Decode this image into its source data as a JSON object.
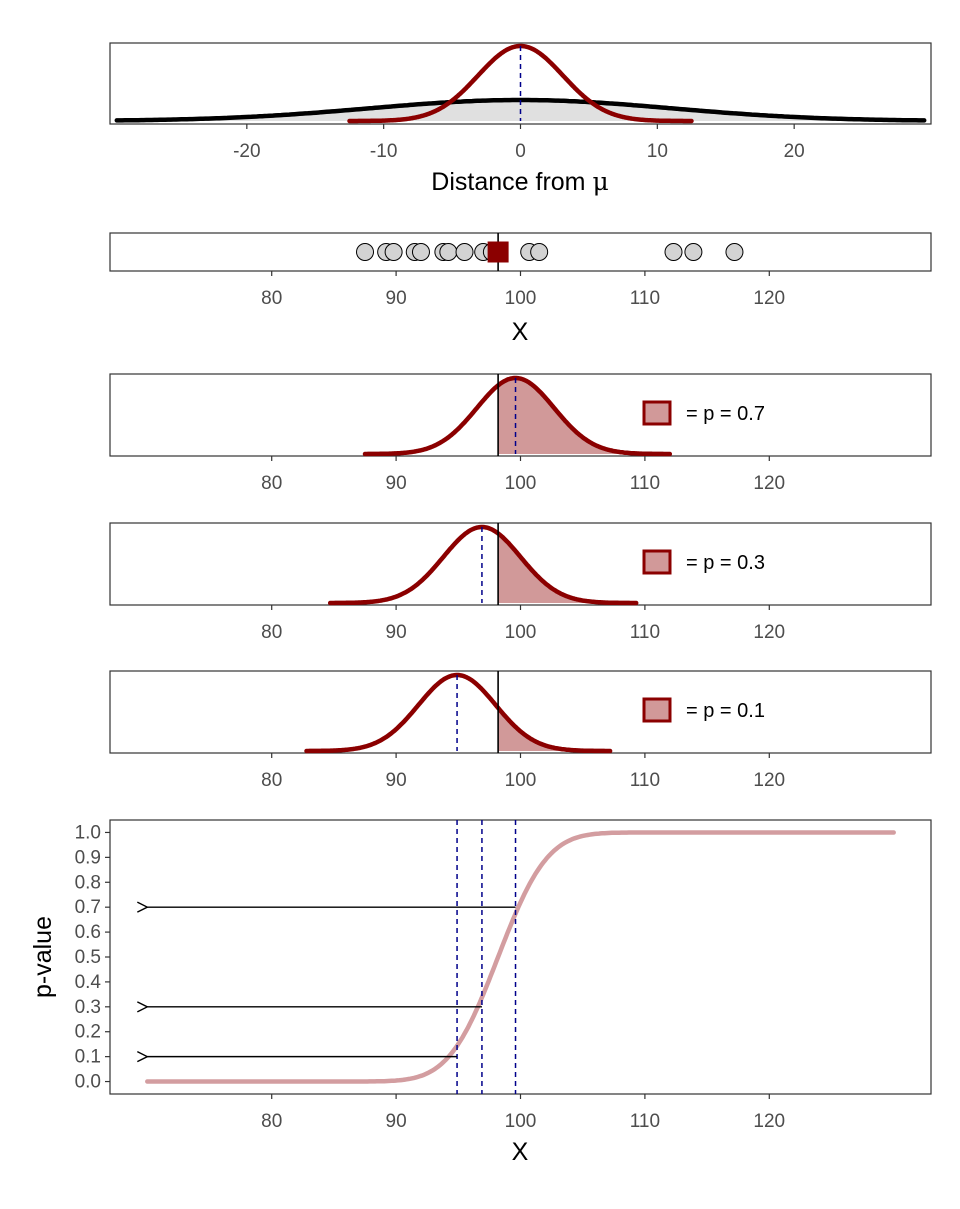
{
  "colors": {
    "curve": "#8b0000",
    "fill": "#d19999",
    "sampling_curve": "#000000",
    "guide": "#00008b",
    "pcurve": "#d39da0",
    "point_fill": "#d3d3d3",
    "frame": "#333333",
    "tick_text": "#4d4d4d"
  },
  "chart_data": [
    {
      "type": "area",
      "panel": "distance",
      "xlabel_prefix": "Distance from ",
      "xlabel_symbol": "μ",
      "ylabel": "",
      "xlim": [
        -30,
        30
      ],
      "ticks": [
        -20,
        -10,
        0,
        10,
        20
      ],
      "tick_labels": [
        "-20",
        "-10",
        "0",
        "10",
        "20"
      ],
      "series": [
        {
          "kind": "normal",
          "mean": 0,
          "sd": 3.1,
          "range": [
            -12.5,
            12.5
          ],
          "role": "red"
        },
        {
          "kind": "normal",
          "mean": 0,
          "sd": 11,
          "range": [
            -29.5,
            29.5
          ],
          "role": "black"
        }
      ],
      "mean_line": 0
    },
    {
      "type": "scatter",
      "panel": "sample",
      "xlabel": "X",
      "xlim": [
        67,
        133
      ],
      "ticks": [
        80,
        90,
        100,
        110,
        120
      ],
      "tick_labels": [
        "80",
        "90",
        "100",
        "110",
        "120"
      ],
      "x": [
        87.5,
        89.2,
        89.8,
        91.5,
        92.0,
        93.8,
        94.2,
        95.5,
        97.0,
        97.7,
        98.2,
        100.7,
        101.5,
        112.3,
        113.9,
        117.2
      ],
      "sample_mean": 98.2
    },
    {
      "type": "area",
      "panel": "p07",
      "mean": 99.6,
      "sd": 3.1,
      "range": [
        87.5,
        112.0
      ],
      "observed_mean": 98.2,
      "shade": "right",
      "legend": "= p = 0.7",
      "ticks": [
        80,
        90,
        100,
        110,
        120
      ],
      "tick_labels": [
        "80",
        "90",
        "100",
        "110",
        "120"
      ],
      "xlim": [
        67,
        133
      ]
    },
    {
      "type": "area",
      "panel": "p03",
      "mean": 96.9,
      "sd": 3.1,
      "range": [
        84.7,
        109.3
      ],
      "observed_mean": 98.2,
      "shade": "right",
      "legend": "= p = 0.3",
      "ticks": [
        80,
        90,
        100,
        110,
        120
      ],
      "tick_labels": [
        "80",
        "90",
        "100",
        "110",
        "120"
      ],
      "xlim": [
        67,
        133
      ]
    },
    {
      "type": "area",
      "panel": "p01",
      "mean": 94.9,
      "sd": 3.1,
      "range": [
        82.8,
        107.2
      ],
      "observed_mean": 98.2,
      "shade": "right",
      "legend": "= p = 0.1",
      "ticks": [
        80,
        90,
        100,
        110,
        120
      ],
      "tick_labels": [
        "80",
        "90",
        "100",
        "110",
        "120"
      ],
      "xlim": [
        67,
        133
      ]
    },
    {
      "type": "line",
      "panel": "pvalue",
      "xlabel": "X",
      "ylabel": "p-value",
      "xlim": [
        67,
        133
      ],
      "ylim": [
        -0.05,
        1.05
      ],
      "x_ticks": [
        80,
        90,
        100,
        110,
        120
      ],
      "x_tick_labels": [
        "80",
        "90",
        "100",
        "110",
        "120"
      ],
      "y_ticks": [
        0.0,
        0.1,
        0.2,
        0.3,
        0.4,
        0.5,
        0.6,
        0.7,
        0.8,
        0.9,
        1.0
      ],
      "y_tick_labels": [
        "0.0",
        "0.1",
        "0.2",
        "0.3",
        "0.4",
        "0.5",
        "0.6",
        "0.7",
        "0.8",
        "0.9",
        "1.0"
      ],
      "curve": {
        "kind": "normal_cdf",
        "mean": 98.2,
        "sd": 3.1,
        "range": [
          70,
          130
        ]
      },
      "guides_x": [
        94.9,
        96.9,
        99.6
      ],
      "arrows": [
        {
          "x_from": 99.6,
          "x_to": 70,
          "y": 0.7
        },
        {
          "x_from": 96.9,
          "x_to": 70,
          "y": 0.3
        },
        {
          "x_from": 94.9,
          "x_to": 70,
          "y": 0.1
        }
      ]
    }
  ]
}
